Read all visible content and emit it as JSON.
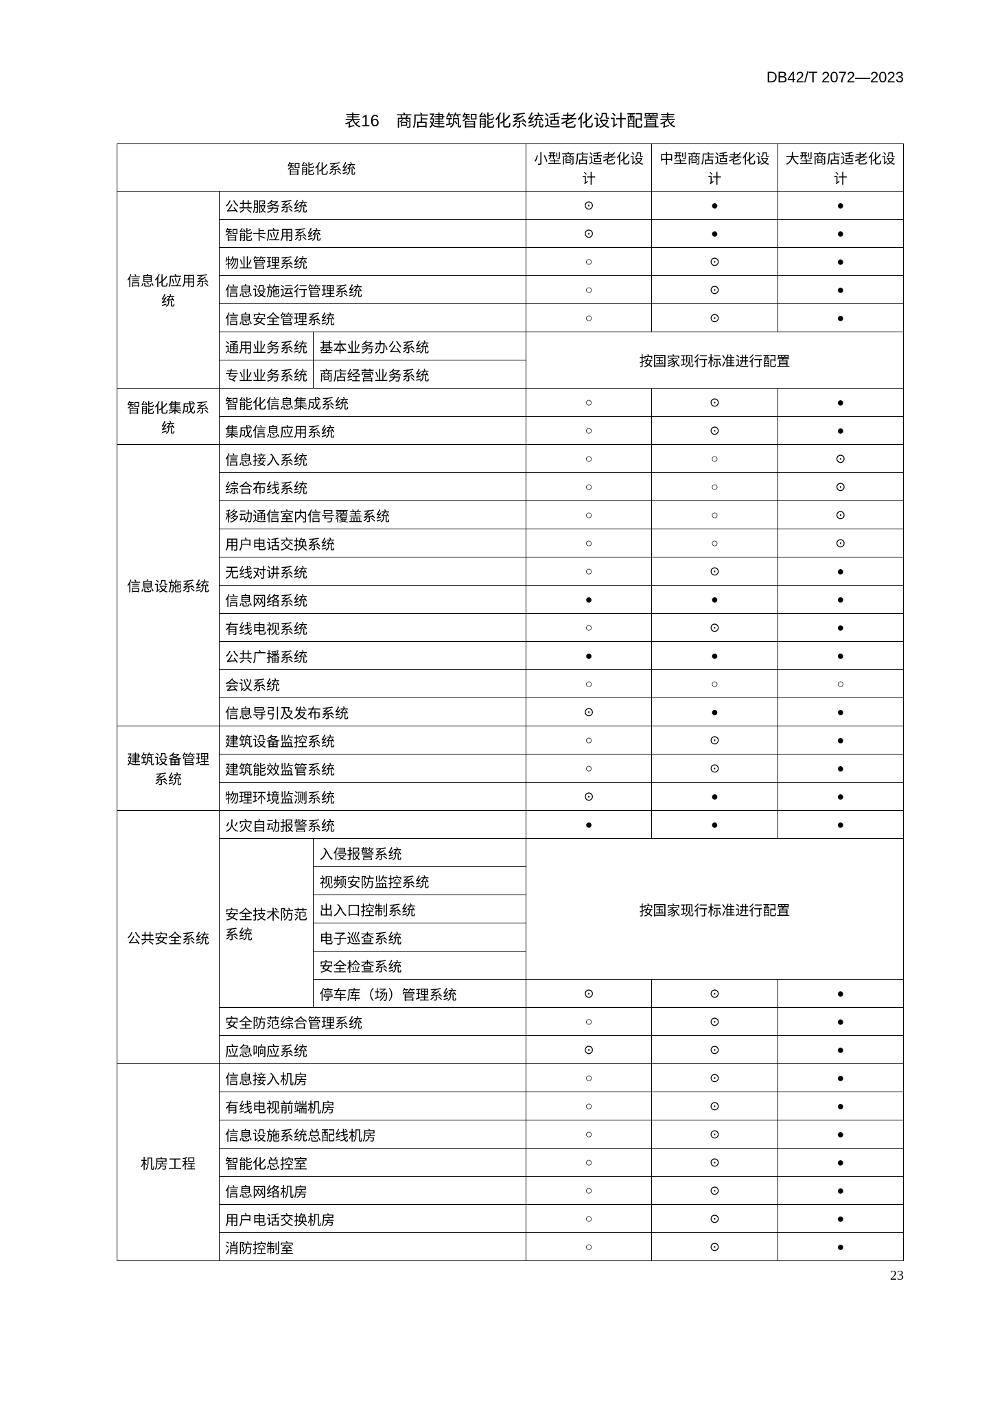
{
  "doc_code": "DB42/T 2072—2023",
  "title": "表16　商店建筑智能化系统适老化设计配置表",
  "header": {
    "c1": "智能化系统",
    "c2": "小型商店适老化设计",
    "c3": "中型商店适老化设计",
    "c4": "大型商店适老化设计"
  },
  "merged_text": "按国家现行标准进行配置",
  "symbols": {
    "s": "●",
    "d": "⊙",
    "o": "○"
  },
  "colwidths": {
    "a": "13%",
    "b": "12%",
    "c": "27%",
    "d": "16%",
    "e": "16%",
    "f": "16%"
  },
  "groups": {
    "g1": {
      "label": "信息化应用系统",
      "rows": [
        {
          "lab": "公共服务系统",
          "v": [
            "d",
            "s",
            "s"
          ]
        },
        {
          "lab": "智能卡应用系统",
          "v": [
            "d",
            "s",
            "s"
          ]
        },
        {
          "lab": "物业管理系统",
          "v": [
            "o",
            "d",
            "s"
          ]
        },
        {
          "lab": "信息设施运行管理系统",
          "v": [
            "o",
            "d",
            "s"
          ]
        },
        {
          "lab": "信息安全管理系统",
          "v": [
            "o",
            "d",
            "s"
          ]
        }
      ],
      "sub": [
        {
          "a": "通用业务系统",
          "b": "基本业务办公系统"
        },
        {
          "a": "专业业务系统",
          "b": "商店经营业务系统"
        }
      ]
    },
    "g2": {
      "label": "智能化集成系统",
      "rows": [
        {
          "lab": "智能化信息集成系统",
          "v": [
            "o",
            "d",
            "s"
          ]
        },
        {
          "lab": "集成信息应用系统",
          "v": [
            "o",
            "d",
            "s"
          ]
        }
      ]
    },
    "g3": {
      "label": "信息设施系统",
      "rows": [
        {
          "lab": "信息接入系统",
          "v": [
            "o",
            "o",
            "d"
          ]
        },
        {
          "lab": "综合布线系统",
          "v": [
            "o",
            "o",
            "d"
          ]
        },
        {
          "lab": "移动通信室内信号覆盖系统",
          "v": [
            "o",
            "o",
            "d"
          ]
        },
        {
          "lab": "用户电话交换系统",
          "v": [
            "o",
            "o",
            "d"
          ]
        },
        {
          "lab": "无线对讲系统",
          "v": [
            "o",
            "d",
            "s"
          ]
        },
        {
          "lab": "信息网络系统",
          "v": [
            "s",
            "s",
            "s"
          ]
        },
        {
          "lab": "有线电视系统",
          "v": [
            "o",
            "d",
            "s"
          ]
        },
        {
          "lab": "公共广播系统",
          "v": [
            "s",
            "s",
            "s"
          ]
        },
        {
          "lab": "会议系统",
          "v": [
            "o",
            "o",
            "o"
          ]
        },
        {
          "lab": "信息导引及发布系统",
          "v": [
            "d",
            "s",
            "s"
          ]
        }
      ]
    },
    "g4": {
      "label": "建筑设备管理系统",
      "rows": [
        {
          "lab": "建筑设备监控系统",
          "v": [
            "o",
            "d",
            "s"
          ]
        },
        {
          "lab": "建筑能效监管系统",
          "v": [
            "o",
            "d",
            "s"
          ]
        },
        {
          "lab": "物理环境监测系统",
          "v": [
            "d",
            "s",
            "s"
          ]
        }
      ]
    },
    "g5": {
      "label": "公共安全系统",
      "row1": {
        "lab": "火灾自动报警系统",
        "v": [
          "s",
          "s",
          "s"
        ]
      },
      "sub_label": "安全技术防范系统",
      "subitems": [
        "入侵报警系统",
        "视频安防监控系统",
        "出入口控制系统",
        "电子巡查系统",
        "安全检查系统"
      ],
      "row2": {
        "lab": "停车库（场）管理系统",
        "v": [
          "d",
          "d",
          "s"
        ]
      },
      "rows": [
        {
          "lab": "安全防范综合管理系统",
          "v": [
            "o",
            "d",
            "s"
          ]
        },
        {
          "lab": "应急响应系统",
          "v": [
            "d",
            "d",
            "s"
          ]
        }
      ]
    },
    "g6": {
      "label": "机房工程",
      "rows": [
        {
          "lab": "信息接入机房",
          "v": [
            "o",
            "d",
            "s"
          ]
        },
        {
          "lab": "有线电视前端机房",
          "v": [
            "o",
            "d",
            "s"
          ]
        },
        {
          "lab": "信息设施系统总配线机房",
          "v": [
            "o",
            "d",
            "s"
          ]
        },
        {
          "lab": "智能化总控室",
          "v": [
            "o",
            "d",
            "s"
          ]
        },
        {
          "lab": "信息网络机房",
          "v": [
            "o",
            "d",
            "s"
          ]
        },
        {
          "lab": "用户电话交换机房",
          "v": [
            "o",
            "d",
            "s"
          ]
        },
        {
          "lab": "消防控制室",
          "v": [
            "o",
            "d",
            "s"
          ]
        }
      ]
    }
  },
  "page_num": "23"
}
